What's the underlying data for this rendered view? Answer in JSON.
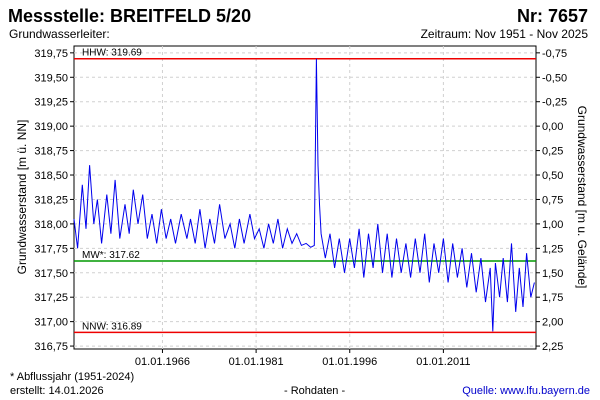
{
  "header": {
    "title": "Messstelle: BREITFELD 5/20",
    "number": "Nr: 7657",
    "subtitle": "Grundwasserleiter:",
    "period": "Zeitraum: Nov 1951 - Nov 2025"
  },
  "footer": {
    "note": "* Abflussjahr (1951-2024)",
    "created": "erstellt:  14.01.2026",
    "raw": "- Rohdaten -",
    "source": "Quelle: www.lfu.bayern.de"
  },
  "colors": {
    "series": "#0000ee",
    "hhw": "#ee0000",
    "nnw": "#ee0000",
    "mw": "#009900"
  },
  "chart_data": {
    "type": "line",
    "ylabel_left": "Grundwasserstand [m ü. NN]",
    "ylabel_right": "Grundwasserstand [m u. Gelände]",
    "ylim": [
      316.72,
      319.82
    ],
    "xlim": [
      "1951-11-01",
      "2025-11-01"
    ],
    "grid": true,
    "ground_level": 319.0,
    "left_ticks": [
      {
        "v": 316.75,
        "label": "316,75"
      },
      {
        "v": 317.0,
        "label": "317,00"
      },
      {
        "v": 317.25,
        "label": "317,25"
      },
      {
        "v": 317.5,
        "label": "317,50"
      },
      {
        "v": 317.75,
        "label": "317,75"
      },
      {
        "v": 318.0,
        "label": "318,00"
      },
      {
        "v": 318.25,
        "label": "318,25"
      },
      {
        "v": 318.5,
        "label": "318,50"
      },
      {
        "v": 318.75,
        "label": "318,75"
      },
      {
        "v": 319.0,
        "label": "319,00"
      },
      {
        "v": 319.25,
        "label": "319,25"
      },
      {
        "v": 319.5,
        "label": "319,50"
      },
      {
        "v": 319.75,
        "label": "319,75"
      }
    ],
    "right_ticks": [
      {
        "v": -0.75,
        "label": "-0,75"
      },
      {
        "v": -0.5,
        "label": "-0,50"
      },
      {
        "v": -0.25,
        "label": "-0,25"
      },
      {
        "v": 0.0,
        "label": "0,00"
      },
      {
        "v": 0.25,
        "label": "0,25"
      },
      {
        "v": 0.5,
        "label": "0,50"
      },
      {
        "v": 0.75,
        "label": "0,75"
      },
      {
        "v": 1.0,
        "label": "1,00"
      },
      {
        "v": 1.25,
        "label": "1,25"
      },
      {
        "v": 1.5,
        "label": "1,50"
      },
      {
        "v": 1.75,
        "label": "1,75"
      },
      {
        "v": 2.0,
        "label": "2,00"
      },
      {
        "v": 2.25,
        "label": "2,25"
      }
    ],
    "x_ticks": [
      {
        "date": "1966-01-01",
        "label": "01.01.1966"
      },
      {
        "date": "1981-01-01",
        "label": "01.01.1981"
      },
      {
        "date": "1996-01-01",
        "label": "01.01.1996"
      },
      {
        "date": "2011-01-01",
        "label": "01.01.2011"
      }
    ],
    "reference_lines": [
      {
        "key": "hhw",
        "label": "HHW: 319.69",
        "value": 319.69
      },
      {
        "key": "mw",
        "label": "MW*: 317.62",
        "value": 317.62
      },
      {
        "key": "nnw",
        "label": "NNW: 316.89",
        "value": 316.89
      }
    ],
    "series": [
      {
        "points": [
          [
            "1951-11-01",
            318.05
          ],
          [
            "1952-06-01",
            317.75
          ],
          [
            "1953-03-01",
            318.4
          ],
          [
            "1953-10-01",
            317.95
          ],
          [
            "1954-05-01",
            318.6
          ],
          [
            "1955-01-01",
            318.0
          ],
          [
            "1955-08-01",
            318.25
          ],
          [
            "1956-04-01",
            317.8
          ],
          [
            "1957-02-01",
            318.3
          ],
          [
            "1957-10-01",
            317.9
          ],
          [
            "1958-06-01",
            318.45
          ],
          [
            "1959-03-01",
            317.85
          ],
          [
            "1960-01-01",
            318.2
          ],
          [
            "1960-09-01",
            317.9
          ],
          [
            "1961-05-01",
            318.35
          ],
          [
            "1962-02-01",
            318.0
          ],
          [
            "1962-11-01",
            318.3
          ],
          [
            "1963-08-01",
            317.85
          ],
          [
            "1964-05-01",
            318.1
          ],
          [
            "1965-02-01",
            317.8
          ],
          [
            "1965-11-01",
            318.15
          ],
          [
            "1966-08-01",
            317.85
          ],
          [
            "1967-05-01",
            318.05
          ],
          [
            "1968-02-01",
            317.8
          ],
          [
            "1969-01-01",
            318.1
          ],
          [
            "1969-12-01",
            317.85
          ],
          [
            "1970-07-01",
            318.05
          ],
          [
            "1971-04-01",
            317.8
          ],
          [
            "1972-01-01",
            318.15
          ],
          [
            "1972-11-01",
            317.75
          ],
          [
            "1973-08-01",
            318.05
          ],
          [
            "1974-05-01",
            317.8
          ],
          [
            "1975-03-01",
            318.2
          ],
          [
            "1976-01-01",
            317.85
          ],
          [
            "1976-11-01",
            318.0
          ],
          [
            "1977-08-01",
            317.75
          ],
          [
            "1978-05-01",
            318.05
          ],
          [
            "1979-02-01",
            317.8
          ],
          [
            "1980-01-01",
            318.1
          ],
          [
            "1980-10-01",
            317.85
          ],
          [
            "1981-07-01",
            317.95
          ],
          [
            "1982-04-01",
            317.75
          ],
          [
            "1983-01-01",
            318.0
          ],
          [
            "1983-10-01",
            317.8
          ],
          [
            "1984-07-01",
            318.05
          ],
          [
            "1985-04-01",
            317.75
          ],
          [
            "1986-01-01",
            317.95
          ],
          [
            "1986-10-01",
            317.8
          ],
          [
            "1987-07-01",
            317.9
          ],
          [
            "1988-04-01",
            317.78
          ],
          [
            "1989-01-01",
            317.8
          ],
          [
            "1989-10-01",
            317.76
          ],
          [
            "1990-05-01",
            317.78
          ],
          [
            "1990-09-01",
            319.69
          ],
          [
            "1990-12-01",
            318.6
          ],
          [
            "1991-03-01",
            318.2
          ],
          [
            "1991-06-01",
            317.9
          ],
          [
            "1992-02-01",
            317.65
          ],
          [
            "1992-11-01",
            317.9
          ],
          [
            "1993-08-01",
            317.55
          ],
          [
            "1994-05-01",
            317.85
          ],
          [
            "1995-03-01",
            317.5
          ],
          [
            "1996-01-01",
            317.85
          ],
          [
            "1996-10-01",
            317.55
          ],
          [
            "1997-07-01",
            317.95
          ],
          [
            "1998-04-01",
            317.45
          ],
          [
            "1999-01-01",
            317.9
          ],
          [
            "1999-10-01",
            317.55
          ],
          [
            "2000-07-01",
            318.0
          ],
          [
            "2001-04-01",
            317.5
          ],
          [
            "2002-01-01",
            317.9
          ],
          [
            "2002-10-01",
            317.45
          ],
          [
            "2003-07-01",
            317.85
          ],
          [
            "2004-04-01",
            317.5
          ],
          [
            "2005-01-01",
            317.8
          ],
          [
            "2005-10-01",
            317.45
          ],
          [
            "2006-07-01",
            317.85
          ],
          [
            "2007-04-01",
            317.5
          ],
          [
            "2008-01-01",
            317.9
          ],
          [
            "2008-10-01",
            317.4
          ],
          [
            "2009-07-01",
            317.8
          ],
          [
            "2010-04-01",
            317.5
          ],
          [
            "2011-01-01",
            317.85
          ],
          [
            "2011-10-01",
            317.4
          ],
          [
            "2012-07-01",
            317.8
          ],
          [
            "2013-04-01",
            317.45
          ],
          [
            "2014-01-01",
            317.75
          ],
          [
            "2014-10-01",
            317.35
          ],
          [
            "2015-07-01",
            317.7
          ],
          [
            "2016-04-01",
            317.3
          ],
          [
            "2017-01-01",
            317.65
          ],
          [
            "2017-10-01",
            317.2
          ],
          [
            "2018-07-01",
            317.55
          ],
          [
            "2018-12-01",
            316.9
          ],
          [
            "2019-05-01",
            317.6
          ],
          [
            "2020-01-01",
            317.25
          ],
          [
            "2020-08-01",
            317.65
          ],
          [
            "2021-04-01",
            317.2
          ],
          [
            "2021-12-01",
            317.8
          ],
          [
            "2022-08-01",
            317.1
          ],
          [
            "2023-03-01",
            317.55
          ],
          [
            "2023-10-01",
            317.15
          ],
          [
            "2024-05-01",
            317.7
          ],
          [
            "2025-01-01",
            317.25
          ],
          [
            "2025-08-01",
            317.4
          ]
        ]
      }
    ]
  }
}
